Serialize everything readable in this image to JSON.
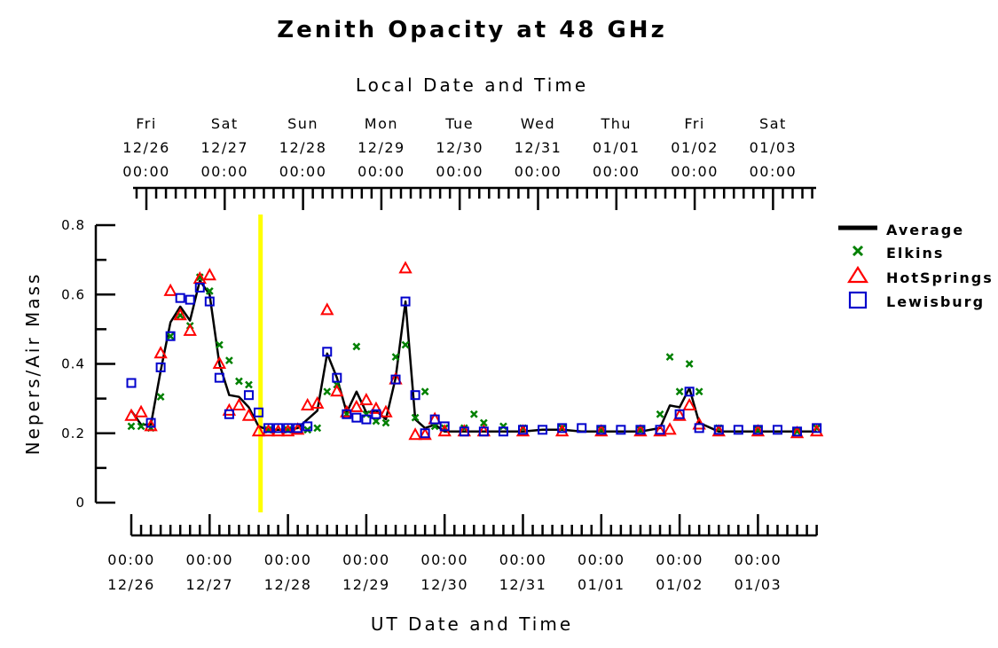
{
  "chart_data": {
    "type": "line",
    "title": "Zenith Opacity at 48 GHz",
    "xlabel_top": "Local Date and Time",
    "xlabel": "UT Date and Time",
    "ylabel": "Nepers/Air Mass",
    "ylim": [
      0,
      0.8
    ],
    "xlim_days": [
      0,
      8.75
    ],
    "marker_day": 1.65,
    "yticks": [
      "0",
      "0.2",
      "0.4",
      "0.6",
      "0.8"
    ],
    "top_ticks": [
      {
        "day": "Fri",
        "date": "12/26",
        "time": "00:00"
      },
      {
        "day": "Sat",
        "date": "12/27",
        "time": "00:00"
      },
      {
        "day": "Sun",
        "date": "12/28",
        "time": "00:00"
      },
      {
        "day": "Mon",
        "date": "12/29",
        "time": "00:00"
      },
      {
        "day": "Tue",
        "date": "12/30",
        "time": "00:00"
      },
      {
        "day": "Wed",
        "date": "12/31",
        "time": "00:00"
      },
      {
        "day": "Thu",
        "date": "01/01",
        "time": "00:00"
      },
      {
        "day": "Fri",
        "date": "01/02",
        "time": "00:00"
      },
      {
        "day": "Sat",
        "date": "01/03",
        "time": "00:00"
      }
    ],
    "bottom_ticks": [
      {
        "time": "00:00",
        "date": "12/26"
      },
      {
        "time": "00:00",
        "date": "12/27"
      },
      {
        "time": "00:00",
        "date": "12/28"
      },
      {
        "time": "00:00",
        "date": "12/29"
      },
      {
        "time": "00:00",
        "date": "12/30"
      },
      {
        "time": "00:00",
        "date": "12/31"
      },
      {
        "time": "00:00",
        "date": "01/01"
      },
      {
        "time": "00:00",
        "date": "01/02"
      },
      {
        "time": "00:00",
        "date": "01/03"
      }
    ],
    "legend": [
      "Average",
      "Elkins",
      "HotSprings",
      "Lewisburg"
    ],
    "colors": {
      "Average": "#000000",
      "Elkins": "#008000",
      "HotSprings": "#ff0000",
      "Lewisburg": "#0000cc",
      "marker": "#ffff00"
    },
    "series": [
      {
        "name": "Average",
        "style": "line",
        "x": [
          0,
          0.125,
          0.25,
          0.375,
          0.5,
          0.625,
          0.75,
          0.875,
          1.0,
          1.125,
          1.25,
          1.375,
          1.5,
          1.625,
          1.75,
          1.875,
          2.0,
          2.125,
          2.25,
          2.375,
          2.5,
          2.625,
          2.75,
          2.875,
          3.0,
          3.125,
          3.25,
          3.375,
          3.5,
          3.625,
          3.75,
          3.875,
          4.0,
          4.125,
          4.25,
          4.5,
          4.75,
          5.0,
          5.25,
          5.5,
          5.75,
          6.0,
          6.25,
          6.5,
          6.75,
          6.875,
          7.0,
          7.125,
          7.25,
          7.5,
          7.75,
          8.0,
          8.25,
          8.5,
          8.75
        ],
        "y": [
          0.265,
          0.225,
          0.225,
          0.38,
          0.52,
          0.565,
          0.525,
          0.64,
          0.6,
          0.4,
          0.31,
          0.305,
          0.275,
          0.22,
          0.21,
          0.21,
          0.21,
          0.215,
          0.24,
          0.265,
          0.43,
          0.36,
          0.26,
          0.32,
          0.26,
          0.265,
          0.24,
          0.36,
          0.58,
          0.24,
          0.215,
          0.225,
          0.205,
          0.205,
          0.205,
          0.205,
          0.205,
          0.205,
          0.21,
          0.21,
          0.205,
          0.205,
          0.205,
          0.205,
          0.215,
          0.28,
          0.275,
          0.33,
          0.23,
          0.205,
          0.205,
          0.205,
          0.205,
          0.205,
          0.205
        ]
      },
      {
        "name": "Elkins",
        "style": "x",
        "x": [
          0,
          0.125,
          0.25,
          0.375,
          0.5,
          0.625,
          0.75,
          0.875,
          1.0,
          1.125,
          1.25,
          1.375,
          1.5,
          1.75,
          2.0,
          2.25,
          2.375,
          2.5,
          2.625,
          2.75,
          2.875,
          3.0,
          3.125,
          3.25,
          3.375,
          3.5,
          3.625,
          3.75,
          3.875,
          4.0,
          4.25,
          4.375,
          4.5,
          4.75,
          5.0,
          5.5,
          6.0,
          6.5,
          6.75,
          6.875,
          7.0,
          7.125,
          7.25,
          7.5,
          8.0,
          8.5,
          8.75
        ],
        "y": [
          0.22,
          0.22,
          0.215,
          0.305,
          0.48,
          0.54,
          0.51,
          0.65,
          0.61,
          0.455,
          0.41,
          0.35,
          0.34,
          0.21,
          0.21,
          0.21,
          0.215,
          0.32,
          0.34,
          0.255,
          0.45,
          0.255,
          0.235,
          0.23,
          0.42,
          0.455,
          0.245,
          0.32,
          0.22,
          0.215,
          0.215,
          0.255,
          0.23,
          0.22,
          0.215,
          0.215,
          0.21,
          0.21,
          0.255,
          0.42,
          0.32,
          0.4,
          0.32,
          0.215,
          0.21,
          0.205,
          0.215
        ]
      },
      {
        "name": "HotSprings",
        "style": "triangle",
        "x": [
          0,
          0.125,
          0.25,
          0.375,
          0.5,
          0.625,
          0.75,
          0.875,
          1.0,
          1.125,
          1.25,
          1.375,
          1.5,
          1.625,
          1.75,
          1.875,
          2.0,
          2.125,
          2.25,
          2.375,
          2.5,
          2.625,
          2.75,
          2.875,
          3.0,
          3.125,
          3.25,
          3.375,
          3.5,
          3.625,
          3.75,
          3.875,
          4.0,
          4.25,
          4.5,
          5.0,
          5.5,
          6.0,
          6.5,
          6.75,
          6.875,
          7.0,
          7.125,
          7.25,
          7.5,
          8.0,
          8.5,
          8.75
        ],
        "y": [
          0.25,
          0.26,
          0.22,
          0.43,
          0.61,
          0.54,
          0.495,
          0.645,
          0.655,
          0.4,
          0.265,
          0.28,
          0.25,
          0.205,
          0.205,
          0.205,
          0.205,
          0.21,
          0.28,
          0.285,
          0.555,
          0.32,
          0.26,
          0.275,
          0.295,
          0.27,
          0.26,
          0.355,
          0.675,
          0.195,
          0.195,
          0.24,
          0.205,
          0.205,
          0.205,
          0.205,
          0.205,
          0.205,
          0.205,
          0.205,
          0.21,
          0.25,
          0.28,
          0.225,
          0.205,
          0.205,
          0.2,
          0.205
        ]
      },
      {
        "name": "Lewisburg",
        "style": "square",
        "x": [
          0,
          0.25,
          0.375,
          0.5,
          0.625,
          0.75,
          0.875,
          1.0,
          1.125,
          1.25,
          1.5,
          1.625,
          1.75,
          1.875,
          2.0,
          2.125,
          2.25,
          2.5,
          2.625,
          2.75,
          2.875,
          3.0,
          3.125,
          3.375,
          3.5,
          3.625,
          3.75,
          3.875,
          4.0,
          4.25,
          4.5,
          4.75,
          5.0,
          5.25,
          5.5,
          5.75,
          6.0,
          6.25,
          6.5,
          6.75,
          7.0,
          7.125,
          7.25,
          7.5,
          7.75,
          8.0,
          8.25,
          8.5,
          8.75
        ],
        "y": [
          0.345,
          0.23,
          0.39,
          0.48,
          0.59,
          0.585,
          0.62,
          0.58,
          0.36,
          0.255,
          0.31,
          0.26,
          0.215,
          0.215,
          0.215,
          0.215,
          0.22,
          0.435,
          0.36,
          0.255,
          0.245,
          0.24,
          0.255,
          0.355,
          0.58,
          0.31,
          0.2,
          0.24,
          0.22,
          0.205,
          0.205,
          0.205,
          0.21,
          0.21,
          0.215,
          0.215,
          0.21,
          0.21,
          0.21,
          0.21,
          0.255,
          0.32,
          0.215,
          0.21,
          0.21,
          0.21,
          0.21,
          0.205,
          0.215
        ]
      }
    ]
  }
}
